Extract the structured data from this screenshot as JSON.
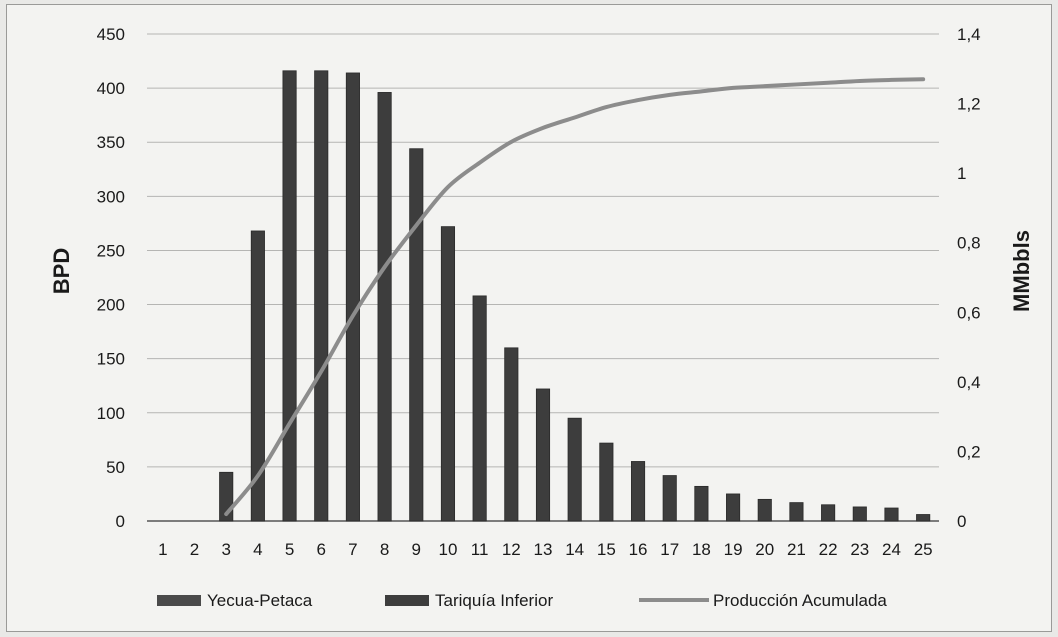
{
  "chart_data": {
    "type": "bar",
    "title": "",
    "categories": [
      "1",
      "2",
      "3",
      "4",
      "5",
      "6",
      "7",
      "8",
      "9",
      "10",
      "11",
      "12",
      "13",
      "14",
      "15",
      "16",
      "17",
      "18",
      "19",
      "20",
      "21",
      "22",
      "23",
      "24",
      "25"
    ],
    "ylabel": "BPD",
    "ylim": [
      0,
      450
    ],
    "yticks": [
      "0",
      "50",
      "100",
      "150",
      "200",
      "250",
      "300",
      "350",
      "400",
      "450"
    ],
    "y2label": "MMbbls",
    "y2lim": [
      0,
      1.4
    ],
    "y2ticks": [
      "0",
      "0,2",
      "0,4",
      "0,6",
      "0,8",
      "1",
      "1,2",
      "1,4"
    ],
    "grid": true,
    "legend_position": "bottom",
    "series": [
      {
        "name": "Yecua-Petaca",
        "type": "bar",
        "color": "#4a4a4a",
        "values": [
          0,
          0,
          0,
          0,
          0,
          0,
          0,
          0,
          0,
          0,
          0,
          0,
          0,
          0,
          0,
          0,
          0,
          0,
          0,
          0,
          0,
          0,
          0,
          0,
          0
        ]
      },
      {
        "name": "Tariquía Inferior",
        "type": "bar",
        "color": "#3d3d3d",
        "values": [
          0,
          0,
          45,
          268,
          416,
          416,
          414,
          396,
          344,
          272,
          208,
          160,
          122,
          95,
          72,
          55,
          42,
          32,
          25,
          20,
          17,
          15,
          13,
          12,
          6
        ]
      },
      {
        "name": "Producción Acumulada",
        "type": "line",
        "axis": "right",
        "color": "#8c8c8c",
        "values": [
          null,
          null,
          0.02,
          0.13,
          0.28,
          0.43,
          0.59,
          0.73,
          0.85,
          0.96,
          1.03,
          1.09,
          1.13,
          1.16,
          1.19,
          1.21,
          1.225,
          1.235,
          1.245,
          1.25,
          1.255,
          1.26,
          1.265,
          1.268,
          1.27
        ]
      }
    ]
  }
}
